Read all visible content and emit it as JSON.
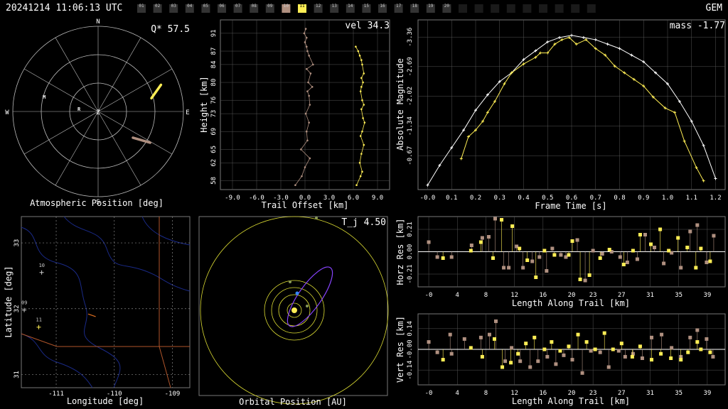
{
  "header": {
    "timestamp": "20241214 11:06:13 UTC",
    "shower": "GEM",
    "frame_strip": {
      "labels": [
        "01",
        "02",
        "03",
        "04",
        "05",
        "06",
        "07",
        "08",
        "09",
        "10",
        "11",
        "12",
        "13",
        "14",
        "15",
        "16",
        "17",
        "18",
        "19",
        "20"
      ],
      "current": "11",
      "highlight": "10",
      "empty_after": 10
    }
  },
  "colors": {
    "grid": "#555555",
    "axis": "#dddddd",
    "obs_white": "#ffffff",
    "obs_yellow": "#ffee55",
    "obs_tan": "#b09080",
    "orbit_purple": "#8844ff",
    "orbit_yellow": "#dddd33",
    "map_river": "#1a2a88",
    "map_border": "#b0552a"
  },
  "chart_data": [
    {
      "id": "atmospheric",
      "type": "polar",
      "xlabel": "Atmospheric Position [deg]",
      "annotation": "Q* 57.5",
      "directions": [
        "N",
        "E",
        "S",
        "W"
      ],
      "station_labels": [
        "M",
        "R"
      ],
      "center_label": "Z",
      "tracks": [
        {
          "color": "obs_yellow",
          "az_start": 76,
          "zd_start": 58,
          "az_end": 67,
          "zd_end": 72
        },
        {
          "color": "obs_tan",
          "az_start": 127,
          "zd_start": 46,
          "az_end": 121,
          "zd_end": 64
        }
      ]
    },
    {
      "id": "height_offset",
      "type": "scatter",
      "xlabel": "Trail Offset [km]",
      "ylabel": "Height [km]",
      "annotation": "vel 34.3",
      "xticks": [
        "-9.0",
        "-6.0",
        "-3.0",
        "0.0",
        "3.0",
        "6.0",
        "9.0"
      ],
      "yticks": [
        "58",
        "62",
        "65",
        "69",
        "73",
        "76",
        "80",
        "84",
        "87",
        "91"
      ],
      "xlim": [
        -10.5,
        10.5
      ],
      "ylim": [
        56,
        94
      ],
      "series": [
        {
          "color": "obs_tan",
          "x": [
            0.1,
            -0.1,
            0.2,
            0.0,
            0.2,
            0.3,
            0.5,
            1.0,
            0.2,
            0.7,
            0.4,
            0.9,
            0.3,
            0.5,
            0.6,
            0.1,
            0.5,
            0.2,
            0.3,
            -0.5,
            0.6,
            0.0,
            -0.4,
            -1.2
          ],
          "y": [
            92,
            91,
            90,
            89,
            88,
            87,
            86,
            84,
            83,
            82,
            80,
            79,
            78,
            77,
            75,
            73,
            71,
            69,
            67,
            65,
            63,
            61,
            59,
            57
          ]
        },
        {
          "color": "obs_yellow",
          "x": [
            6.3,
            6.6,
            6.8,
            7.0,
            7.1,
            7.3,
            7.0,
            7.2,
            7.0,
            6.9,
            7.1,
            7.3,
            7.0,
            7.2,
            7.4,
            7.1,
            6.9,
            7.3,
            7.0,
            6.8,
            7.1,
            6.9,
            6.4
          ],
          "y": [
            88,
            87,
            86,
            85,
            84,
            82,
            81,
            80,
            79,
            78,
            76,
            75,
            74,
            72,
            71,
            69,
            68,
            66,
            64,
            62,
            60,
            59,
            57
          ]
        }
      ]
    },
    {
      "id": "lightcurve",
      "type": "line",
      "xlabel": "Frame Time [s]",
      "ylabel": "Absolute Magnitude",
      "annotation": "mass -1.77",
      "xticks": [
        "-0.0",
        "0.1",
        "0.2",
        "0.3",
        "0.4",
        "0.5",
        "0.6",
        "0.7",
        "0.8",
        "0.9",
        "1.0",
        "1.1",
        "1.2"
      ],
      "yticks": [
        "-3.36",
        "-2.69",
        "-2.02",
        "-1.34",
        "-0.67"
      ],
      "xlim": [
        -0.04,
        1.24
      ],
      "ylim": [
        0.1,
        -3.75
      ],
      "series": [
        {
          "color": "obs_white",
          "x": [
            0.0,
            0.05,
            0.1,
            0.15,
            0.2,
            0.25,
            0.3,
            0.35,
            0.4,
            0.45,
            0.5,
            0.55,
            0.6,
            0.65,
            0.7,
            0.75,
            0.8,
            0.85,
            0.9,
            0.95,
            1.0,
            1.05,
            1.1,
            1.15,
            1.2
          ],
          "y": [
            0.0,
            -0.45,
            -0.85,
            -1.25,
            -1.7,
            -2.05,
            -2.35,
            -2.55,
            -2.85,
            -3.05,
            -3.25,
            -3.35,
            -3.4,
            -3.35,
            -3.3,
            -3.2,
            -3.1,
            -2.95,
            -2.8,
            -2.55,
            -2.3,
            -1.9,
            -1.45,
            -0.9,
            -0.15
          ]
        },
        {
          "color": "obs_yellow",
          "x": [
            0.14,
            0.17,
            0.2,
            0.23,
            0.25,
            0.28,
            0.32,
            0.35,
            0.4,
            0.45,
            0.47,
            0.5,
            0.53,
            0.56,
            0.59,
            0.62,
            0.66,
            0.7,
            0.74,
            0.78,
            0.82,
            0.86,
            0.9,
            0.94,
            0.99,
            1.03,
            1.07,
            1.12,
            1.15
          ],
          "y": [
            -0.6,
            -1.1,
            -1.25,
            -1.45,
            -1.65,
            -1.9,
            -2.3,
            -2.55,
            -2.75,
            -2.9,
            -3.0,
            -3.0,
            -3.2,
            -3.3,
            -3.35,
            -3.2,
            -3.3,
            -3.1,
            -2.95,
            -2.7,
            -2.55,
            -2.4,
            -2.25,
            -2.0,
            -1.75,
            -1.65,
            -1.0,
            -0.4,
            -0.1
          ]
        }
      ]
    },
    {
      "id": "ground_map",
      "type": "map",
      "xlabel": "Longitude [deg]",
      "ylabel": "Latitude [deg]",
      "xticks": [
        "-111",
        "-110",
        "-109"
      ],
      "yticks": [
        "33",
        "32",
        "31"
      ],
      "xlim": [
        -111.6,
        -108.7
      ],
      "ylim": [
        30.8,
        33.4
      ],
      "points": [
        {
          "label": "10",
          "lon": -111.25,
          "lat": 32.55
        },
        {
          "label": "09",
          "lon": -111.55,
          "lat": 31.98
        },
        {
          "label": "11",
          "lon": -111.3,
          "lat": 31.72
        }
      ],
      "track": {
        "lon_start": -110.45,
        "lat_start": 31.92,
        "lon_end": -110.32,
        "lat_end": 31.88
      }
    },
    {
      "id": "orbit",
      "type": "orbit",
      "xlabel": "Orbital Position [AU]",
      "annotation": "T_j 4.50"
    },
    {
      "id": "horz_res",
      "type": "bar",
      "xlabel": "Length Along Trail [km]",
      "ylabel": "Horz Res [km]",
      "xticks": [
        "-0",
        "4",
        "8",
        "12",
        "16",
        "20",
        "23",
        "27",
        "31",
        "35",
        "39"
      ],
      "yticks": [
        "0.21",
        "0.00",
        "-0.21"
      ],
      "xlim": [
        -1.5,
        41.5
      ],
      "ylim": [
        -0.33,
        0.33
      ],
      "series": [
        {
          "color": "obs_tan",
          "x": [
            0,
            1.2,
            3.2,
            6.0,
            7.5,
            8.4,
            9.3,
            10.5,
            11.2,
            12.3,
            13.2,
            14.5,
            15.5,
            16.5,
            17.3,
            18.5,
            19.2,
            20.8,
            21.9,
            23.0,
            24.3,
            25.6,
            26.8,
            27.8,
            29.2,
            30.3,
            31.6,
            32.9,
            34.0,
            35.3,
            36.6,
            37.6,
            38.9,
            39.9
          ],
          "y": [
            0.09,
            -0.05,
            -0.05,
            0.06,
            0.13,
            0.14,
            0.31,
            -0.15,
            -0.15,
            0.05,
            -0.15,
            -0.09,
            -0.05,
            -0.18,
            0.03,
            -0.03,
            -0.05,
            0.11,
            -0.27,
            0.01,
            -0.02,
            0.0,
            -0.05,
            -0.1,
            -0.07,
            0.16,
            0.04,
            -0.11,
            -0.01,
            -0.15,
            0.19,
            0.25,
            -0.1,
            0.15
          ]
        },
        {
          "color": "obs_yellow",
          "x": [
            2.0,
            5.9,
            7.3,
            9.0,
            10.2,
            11.7,
            12.7,
            13.8,
            15.0,
            16.2,
            17.6,
            19.6,
            20.1,
            21.2,
            22.5,
            24.0,
            25.3,
            27.3,
            28.6,
            29.6,
            31.1,
            32.4,
            33.6,
            34.9,
            36.2,
            37.4,
            38.1,
            39.4
          ],
          "y": [
            -0.06,
            0.01,
            0.09,
            -0.06,
            0.3,
            0.24,
            0.03,
            -0.08,
            -0.24,
            0.01,
            -0.03,
            -0.03,
            0.1,
            -0.26,
            -0.22,
            -0.06,
            0.02,
            -0.12,
            0.01,
            0.16,
            0.07,
            0.21,
            0.01,
            0.13,
            0.04,
            -0.15,
            0.03,
            -0.09
          ]
        }
      ]
    },
    {
      "id": "vert_res",
      "type": "bar",
      "xlabel": "Length Along Trail [km]",
      "ylabel": "Vert Res [km]",
      "xticks": [
        "-0",
        "4",
        "8",
        "12",
        "16",
        "20",
        "23",
        "27",
        "31",
        "35",
        "39"
      ],
      "yticks": [
        "0.14",
        "-0.00",
        "-0.14"
      ],
      "xlim": [
        -1.5,
        41.5
      ],
      "ylim": [
        -0.24,
        0.24
      ],
      "series": [
        {
          "color": "obs_tan",
          "x": [
            0,
            1.2,
            3.0,
            3.2,
            5.0,
            7.3,
            8.5,
            9.4,
            10.7,
            11.6,
            12.8,
            14.2,
            15.3,
            16.6,
            17.8,
            18.9,
            20.1,
            21.5,
            22.7,
            24.0,
            25.2,
            26.6,
            27.5,
            28.6,
            29.9,
            31.2,
            32.6,
            34.0,
            35.3,
            36.6,
            37.6,
            38.9,
            39.8
          ],
          "y": [
            0.05,
            -0.02,
            0.1,
            -0.03,
            0.07,
            0.08,
            0.1,
            0.19,
            -0.08,
            0.01,
            -0.08,
            -0.12,
            -0.08,
            -0.05,
            -0.1,
            -0.04,
            -0.07,
            -0.16,
            -0.01,
            -0.02,
            -0.12,
            -0.01,
            -0.05,
            -0.03,
            -0.06,
            0.08,
            0.1,
            0.01,
            -0.05,
            0.08,
            0.13,
            0.07,
            -0.05
          ]
        },
        {
          "color": "obs_yellow",
          "x": [
            2.0,
            5.9,
            7.5,
            9.2,
            10.3,
            11.5,
            12.5,
            13.6,
            14.8,
            16.2,
            17.2,
            18.4,
            19.6,
            20.9,
            22.1,
            23.3,
            24.6,
            25.8,
            27.0,
            28.5,
            29.6,
            31.2,
            32.5,
            33.9,
            35.3,
            36.3,
            37.6,
            38.1,
            39.4
          ],
          "y": [
            -0.07,
            0.01,
            -0.05,
            0.07,
            -0.12,
            -0.09,
            -0.03,
            0.04,
            0.08,
            0.0,
            0.05,
            -0.01,
            0.02,
            0.1,
            0.05,
            0.0,
            0.11,
            0.0,
            0.04,
            -0.05,
            0.02,
            -0.07,
            -0.03,
            -0.06,
            -0.07,
            -0.02,
            0.05,
            0.0,
            -0.02
          ]
        }
      ]
    }
  ]
}
